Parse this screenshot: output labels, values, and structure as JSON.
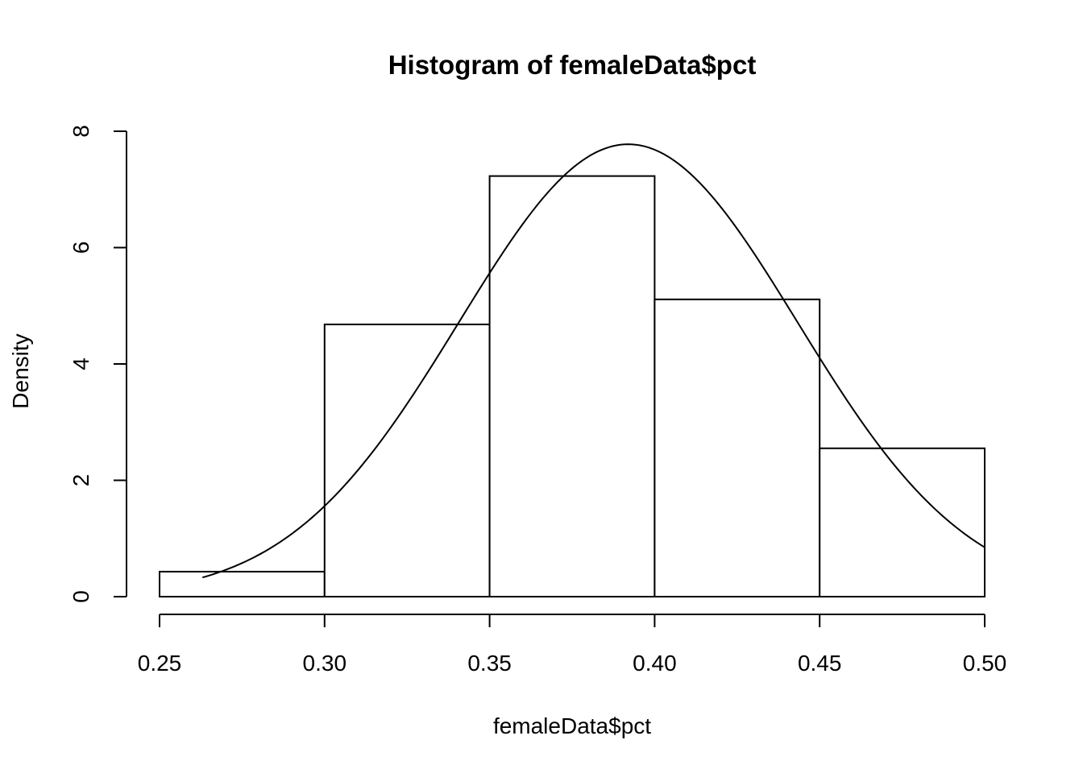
{
  "chart_data": {
    "type": "bar",
    "title": "Histogram of femaleData$pct",
    "xlabel": "femaleData$pct",
    "ylabel": "Density",
    "bins": [
      {
        "start": 0.25,
        "end": 0.3,
        "density": 0.43
      },
      {
        "start": 0.3,
        "end": 0.35,
        "density": 4.68
      },
      {
        "start": 0.35,
        "end": 0.4,
        "density": 7.23
      },
      {
        "start": 0.4,
        "end": 0.45,
        "density": 5.11
      },
      {
        "start": 0.45,
        "end": 0.5,
        "density": 2.55
      }
    ],
    "x_ticks": [
      "0.25",
      "0.30",
      "0.35",
      "0.40",
      "0.45",
      "0.50"
    ],
    "x_tick_values": [
      0.25,
      0.3,
      0.35,
      0.4,
      0.45,
      0.5
    ],
    "y_ticks": [
      "0",
      "2",
      "4",
      "6",
      "8"
    ],
    "y_tick_values": [
      0,
      2,
      4,
      6,
      8
    ],
    "xlim": [
      0.25,
      0.5
    ],
    "ylim": [
      0,
      8
    ],
    "density_curve": {
      "type": "normal",
      "mean": 0.392,
      "sd": 0.0513,
      "x_start": 0.263,
      "x_end": 0.5
    },
    "grid": false
  }
}
